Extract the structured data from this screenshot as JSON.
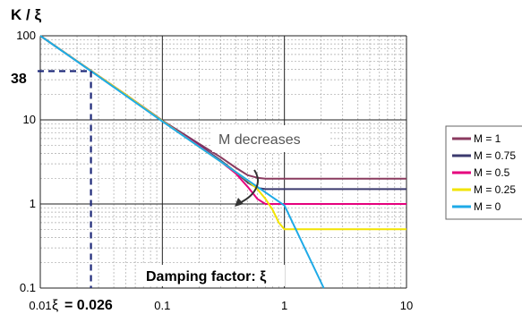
{
  "chart_data": {
    "type": "line",
    "ylabel": "K / ξ",
    "xlabel": "Damping factor: ξ",
    "xscale": "log",
    "yscale": "log",
    "xlim": [
      0.01,
      10
    ],
    "ylim": [
      0.1,
      100
    ],
    "xticks": [
      "0.01",
      "0.1",
      "1",
      "10"
    ],
    "yticks": [
      "100",
      "10",
      "1",
      "0.1"
    ],
    "grid": true,
    "legend_position": "right",
    "annotations": {
      "callout_y": "38",
      "xi_symbol": "ξ",
      "xi_value": "= 0.026",
      "trend_label": "M decreases",
      "damping_label": "Damping factor: ξ"
    },
    "series": [
      {
        "name": "M = 1",
        "color": "#8a3a5f",
        "x": [
          0.01,
          0.02,
          0.05,
          0.1,
          0.2,
          0.3,
          0.4,
          0.5,
          0.6,
          0.7,
          1,
          2,
          5,
          10
        ],
        "y": [
          100,
          50,
          20,
          9.8,
          5.2,
          3.6,
          2.7,
          2.2,
          2.05,
          2,
          2,
          2,
          2,
          2
        ]
      },
      {
        "name": "M = 0.75",
        "color": "#3b3a6e",
        "x": [
          0.01,
          0.02,
          0.05,
          0.1,
          0.2,
          0.3,
          0.4,
          0.5,
          0.6,
          0.7,
          1,
          2,
          5,
          10
        ],
        "y": [
          100,
          50,
          20,
          9.8,
          5,
          3.3,
          2.4,
          1.8,
          1.55,
          1.5,
          1.5,
          1.5,
          1.5,
          1.5
        ]
      },
      {
        "name": "M = 0.5",
        "color": "#e5007d",
        "x": [
          0.01,
          0.02,
          0.05,
          0.1,
          0.2,
          0.3,
          0.4,
          0.5,
          0.6,
          0.7,
          1,
          2,
          5,
          10
        ],
        "y": [
          100,
          50,
          20,
          9.7,
          4.9,
          3.2,
          2.3,
          1.6,
          1.15,
          1.0,
          1,
          1,
          1,
          1
        ]
      },
      {
        "name": "M = 0.25",
        "color": "#f2e400",
        "x": [
          0.01,
          0.02,
          0.05,
          0.1,
          0.2,
          0.3,
          0.4,
          0.5,
          0.6,
          0.7,
          0.8,
          0.9,
          1,
          2,
          5,
          10
        ],
        "y": [
          100,
          50,
          20,
          9.7,
          4.8,
          3.2,
          2.4,
          1.9,
          1.5,
          1.15,
          0.85,
          0.6,
          0.5,
          0.5,
          0.5,
          0.5
        ]
      },
      {
        "name": "M = 0",
        "color": "#1eaae7",
        "x": [
          0.01,
          0.026,
          0.1,
          1,
          2.1
        ],
        "y": [
          100,
          38,
          9.6,
          0.96,
          0.1
        ]
      }
    ]
  }
}
